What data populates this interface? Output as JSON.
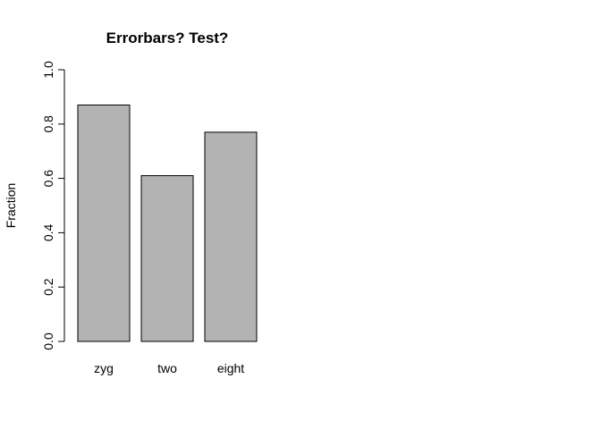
{
  "chart_data": {
    "type": "bar",
    "title": "Errorbars? Test?",
    "xlabel": "",
    "ylabel": "Fraction",
    "categories": [
      "zyg",
      "two",
      "eight"
    ],
    "values": [
      0.87,
      0.61,
      0.77
    ],
    "ylim": [
      0,
      1
    ],
    "yticks": [
      "0.0",
      "0.2",
      "0.4",
      "0.6",
      "0.8",
      "1.0"
    ],
    "bar_color": "#b3b3b3",
    "grid": false,
    "legend": "none"
  }
}
